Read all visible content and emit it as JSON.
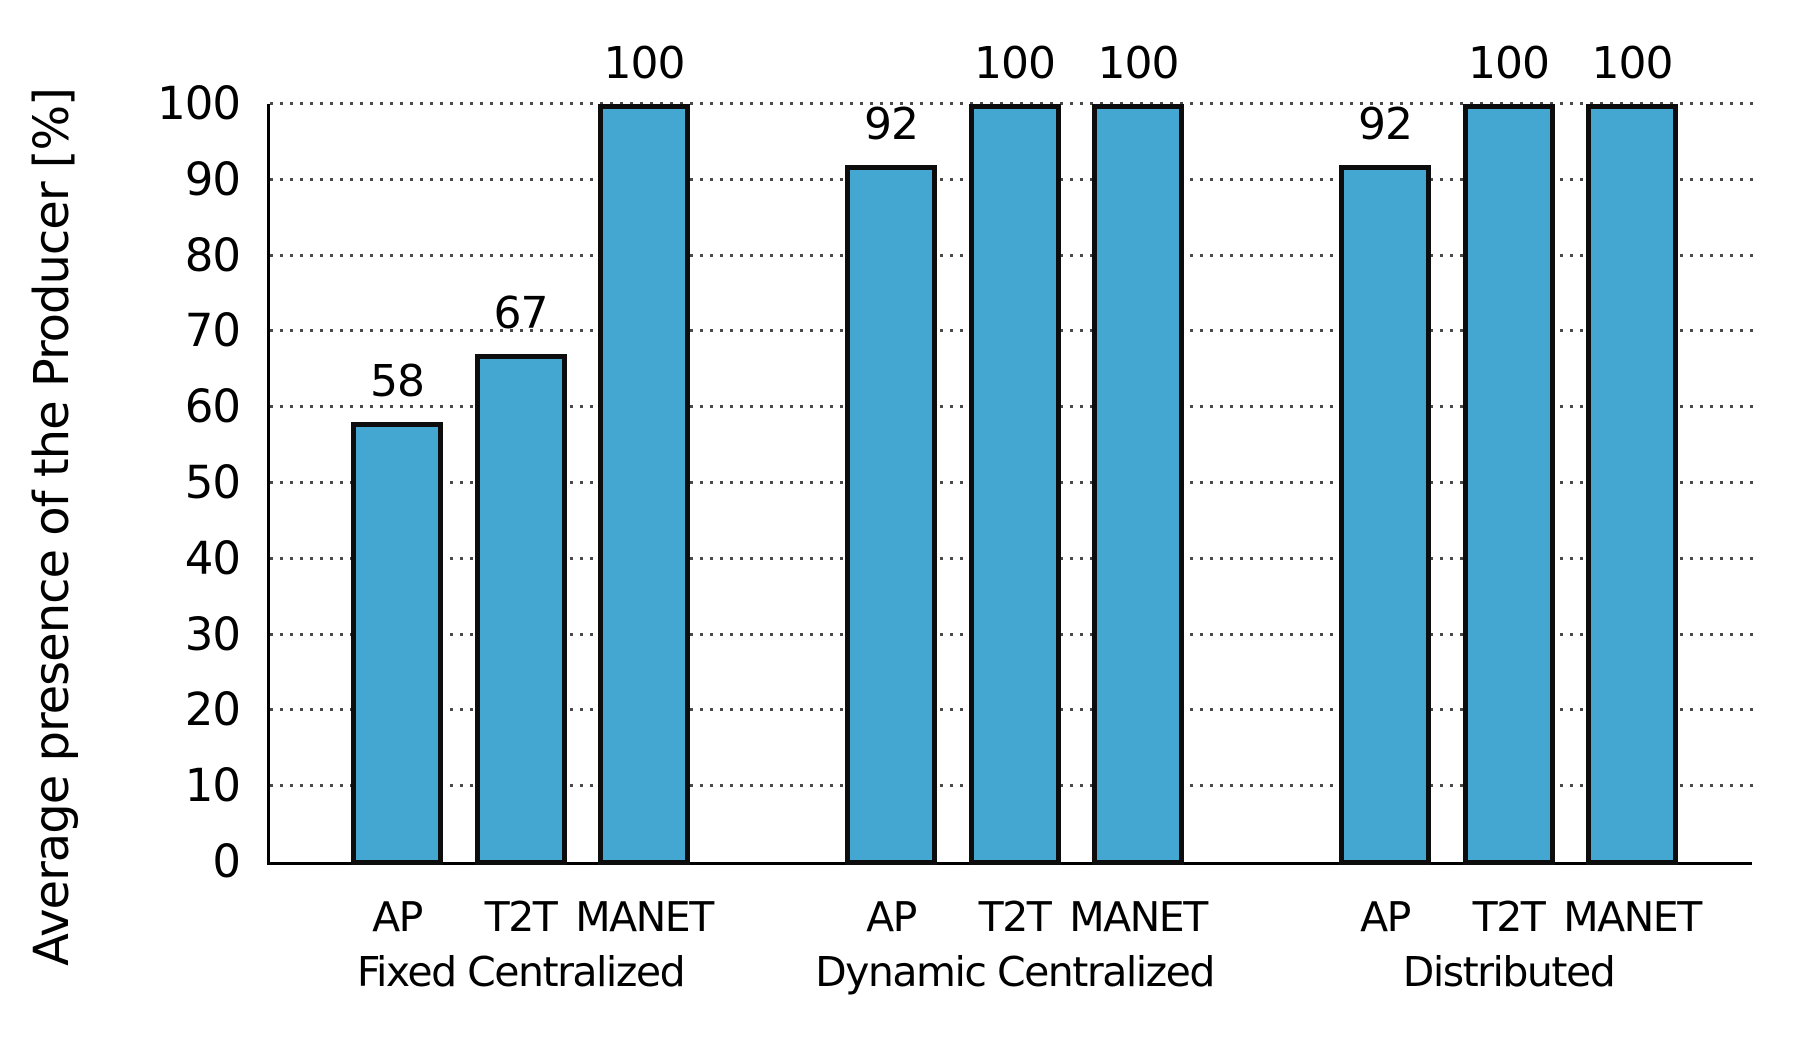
{
  "chart_data": {
    "type": "bar",
    "title": "",
    "xlabel": "",
    "ylabel": "Average presence of the Producer [%]",
    "ylim": [
      0,
      100
    ],
    "yticks": [
      0,
      10,
      20,
      30,
      40,
      50,
      60,
      70,
      80,
      90,
      100
    ],
    "grid": "horizontal-dotted",
    "legend": "none",
    "categories_per_group": [
      "AP",
      "T2T",
      "MANET"
    ],
    "groups": [
      {
        "label": "Fixed Centralized",
        "bars": [
          {
            "label": "AP",
            "value": 58
          },
          {
            "label": "T2T",
            "value": 67
          },
          {
            "label": "MANET",
            "value": 100
          }
        ]
      },
      {
        "label": "Dynamic Centralized",
        "bars": [
          {
            "label": "AP",
            "value": 92
          },
          {
            "label": "T2T",
            "value": 100
          },
          {
            "label": "MANET",
            "value": 100
          }
        ]
      },
      {
        "label": "Distributed",
        "bars": [
          {
            "label": "AP",
            "value": 92
          },
          {
            "label": "T2T",
            "value": 100
          },
          {
            "label": "MANET",
            "value": 100
          }
        ]
      }
    ],
    "colors": {
      "bar_fill": "#44a7d1",
      "bar_border": "#0d0d0d",
      "grid": "#4a4a4a",
      "axis": "#000000",
      "text": "#000000",
      "background": "#ffffff"
    }
  }
}
